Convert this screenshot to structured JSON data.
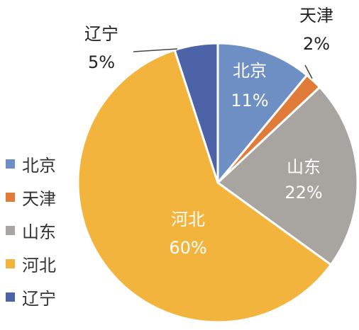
{
  "chart_data": {
    "type": "pie",
    "slices": [
      {
        "label": "北京",
        "value": 11,
        "value_label": "11%",
        "color": "#6E8FC3"
      },
      {
        "label": "天津",
        "value": 2,
        "value_label": "2%",
        "color": "#E07B39"
      },
      {
        "label": "山东",
        "value": 22,
        "value_label": "22%",
        "color": "#A8A4A0"
      },
      {
        "label": "河北",
        "value": 60,
        "value_label": "60%",
        "color": "#F2B43D"
      },
      {
        "label": "辽宁",
        "value": 5,
        "value_label": "5%",
        "color": "#4C63A8"
      }
    ],
    "legend_position": "left",
    "title": ""
  }
}
